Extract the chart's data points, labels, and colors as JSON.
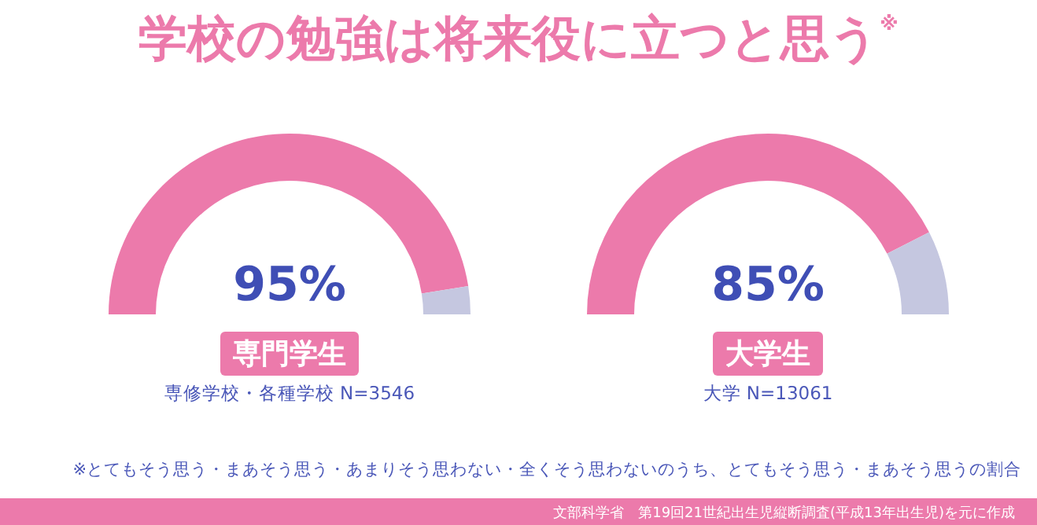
{
  "chart_data": [
    {
      "type": "other",
      "title": "学校の勉強は将来役に立つと思う$^{※}$",
      "annotations": [
        "※とてもそう思う・まあそう思う・あまりそう思わない・全くそう思わないのうち、とてもそう思う・まあそう思うの割合",
        "文部科学省　第19回21世紀出生児縦断調査(平成13年出生児)を元に作成"
      ]
    },
    {
      "type": "donut",
      "title": "専門学生",
      "subtitle": "専修学校・各種学校 N=3546",
      "categories": [
        null,
        null
      ],
      "values": [
        95,
        5
      ],
      "colors": [
        "#ec7aab",
        "#c5c7e0"
      ],
      "value_labels": [
        "95%",
        null
      ]
    },
    {
      "type": "donut",
      "title": "大学生",
      "subtitle": "大学 N=13061",
      "categories": [
        null,
        null
      ],
      "values": [
        85,
        15
      ],
      "colors": [
        "#ec7aab",
        "#c5c7e0"
      ],
      "value_labels": [
        "85%",
        null
      ]
    }
  ]
}
